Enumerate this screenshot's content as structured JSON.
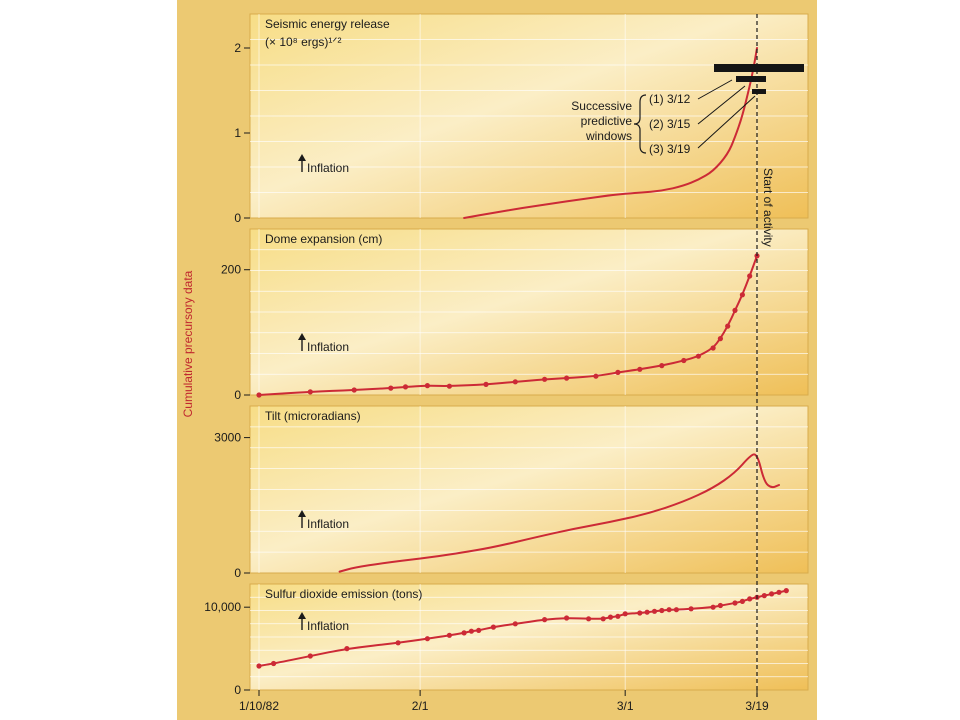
{
  "y_axis_label": "Cumulative precursory data",
  "x_ticks": [
    {
      "label": "1/10/82",
      "day": 0
    },
    {
      "label": "2/1",
      "day": 22
    },
    {
      "label": "3/1",
      "day": 50
    },
    {
      "label": "3/19",
      "day": 68
    }
  ],
  "activity_label": "Start of activity",
  "activity_day": 68,
  "inflation_label": "Inflation",
  "windows": {
    "caption": [
      "Successive",
      "predictive",
      "windows"
    ],
    "items": [
      {
        "label": "(1) 3/12",
        "from_day": 64,
        "to_day": 73
      },
      {
        "label": "(2) 3/15",
        "from_day": 66,
        "to_day": 68
      },
      {
        "label": "(3) 3/19",
        "from_day": 67,
        "to_day": 68
      }
    ]
  },
  "colors": {
    "paper": "#f7dd86",
    "paper_hi": "#fbeec6",
    "paper_lo": "#efbf57",
    "curve": "#cc2a36",
    "grid": "#ffffff",
    "ink": "#1b1b1b",
    "window": "#151515"
  },
  "chart_data": [
    {
      "type": "line",
      "title": "Seismic energy release",
      "units_line": "(× 10⁸ ergs)¹ᐟ²",
      "ylim": [
        0,
        2.4
      ],
      "yticks": [
        0,
        1,
        2
      ],
      "ytick_labels": [
        "0",
        "1",
        "2"
      ],
      "grid": true,
      "markers": false,
      "series": [
        {
          "x": [
            28,
            32,
            36,
            40,
            44,
            48,
            52,
            55,
            58,
            60,
            62,
            64,
            65,
            66,
            67,
            67.5,
            68
          ],
          "y": [
            0,
            0.06,
            0.12,
            0.17,
            0.22,
            0.27,
            0.3,
            0.32,
            0.38,
            0.45,
            0.55,
            0.75,
            0.95,
            1.2,
            1.55,
            1.75,
            2.0
          ]
        }
      ]
    },
    {
      "type": "line",
      "title": "Dome expansion (cm)",
      "ylim": [
        0,
        265
      ],
      "yticks": [
        0,
        200
      ],
      "ytick_labels": [
        "0",
        "200"
      ],
      "grid": true,
      "markers": true,
      "series": [
        {
          "x": [
            0,
            7,
            13,
            18,
            20,
            23,
            26,
            31,
            35,
            39,
            42,
            46,
            49,
            52,
            55,
            58,
            60,
            62,
            63,
            64,
            65,
            66,
            67,
            68
          ],
          "y": [
            0,
            5,
            8,
            11,
            13,
            15,
            14,
            17,
            21,
            25,
            27,
            30,
            36,
            41,
            47,
            55,
            62,
            75,
            90,
            110,
            135,
            160,
            190,
            222
          ]
        }
      ]
    },
    {
      "type": "line",
      "title": "Tilt (microradians)",
      "ylim": [
        0,
        3700
      ],
      "yticks": [
        0,
        3000
      ],
      "ytick_labels": [
        "0",
        "3000"
      ],
      "grid": true,
      "markers": false,
      "series": [
        {
          "x": [
            11,
            13,
            17,
            22,
            27,
            32,
            38,
            43,
            48,
            53,
            58,
            62,
            65,
            67,
            68,
            69,
            70,
            71
          ],
          "y": [
            30,
            120,
            220,
            320,
            430,
            570,
            800,
            980,
            1130,
            1310,
            1580,
            1880,
            2220,
            2590,
            2660,
            2010,
            1880,
            1950
          ]
        }
      ]
    },
    {
      "type": "line",
      "title": "Sulfur dioxide emission (tons)",
      "ylim": [
        0,
        12800
      ],
      "yticks": [
        0,
        10000
      ],
      "ytick_labels": [
        "0",
        "10,000"
      ],
      "grid": true,
      "markers": true,
      "series": [
        {
          "x": [
            0,
            2,
            7,
            12,
            19,
            23,
            26,
            28,
            29,
            30,
            32,
            35,
            39,
            42,
            45,
            47,
            48,
            49,
            50,
            52,
            53,
            54,
            55,
            56,
            57,
            59,
            62,
            63,
            65,
            66,
            67,
            68,
            69,
            70,
            71,
            72
          ],
          "y": [
            2900,
            3200,
            4100,
            5000,
            5700,
            6200,
            6600,
            6900,
            7100,
            7200,
            7600,
            8000,
            8500,
            8700,
            8600,
            8600,
            8800,
            8900,
            9200,
            9300,
            9400,
            9500,
            9600,
            9700,
            9700,
            9800,
            10000,
            10200,
            10500,
            10700,
            11000,
            11200,
            11400,
            11600,
            11800,
            12000
          ]
        }
      ]
    }
  ]
}
